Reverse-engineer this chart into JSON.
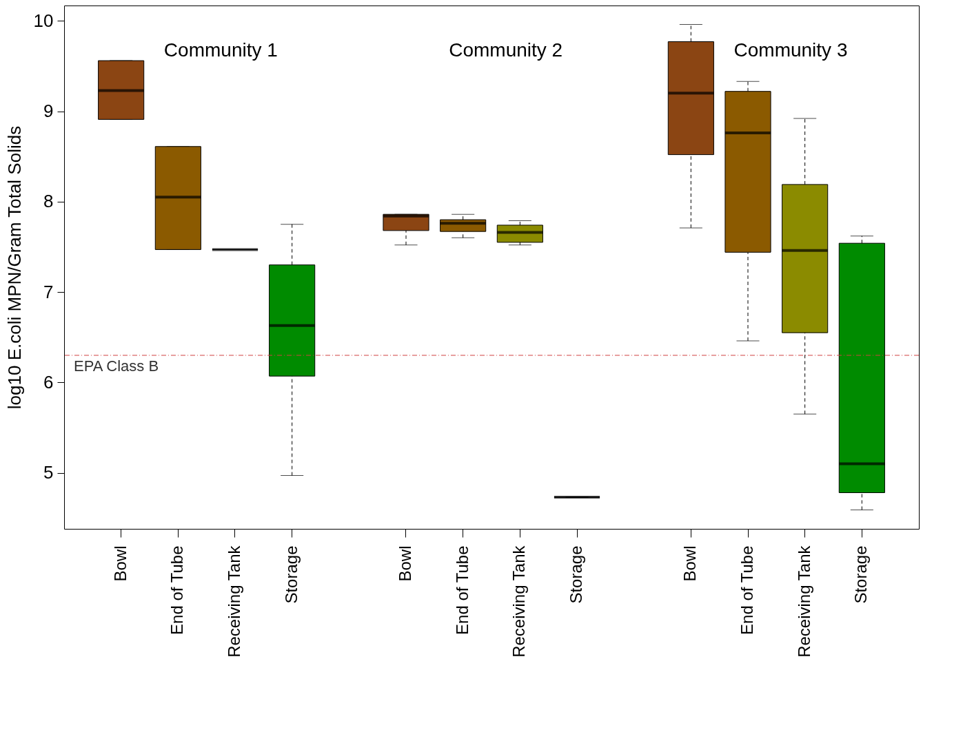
{
  "chart_data": {
    "type": "box",
    "ylabel": "log10 E.coli MPN/Gram Total Solids",
    "categories": [
      "Bowl",
      "End of Tube",
      "Receiving Tank",
      "Storage",
      null,
      "Bowl",
      "End of Tube",
      "Receiving Tank",
      "Storage",
      null,
      "Bowl",
      "End of Tube",
      "Receiving Tank",
      "Storage"
    ],
    "colors": [
      "#8b4513",
      "#8b5a00",
      null,
      "#008b00",
      null,
      "#8b4513",
      "#8b5a00",
      "#8b8b00",
      null,
      null,
      "#8b4513",
      "#8b5a00",
      "#8b8b00",
      "#008b00"
    ],
    "boxes": [
      {
        "low": 8.91,
        "q1": 8.91,
        "median": 9.23,
        "q3": 9.56,
        "high": 9.56
      },
      {
        "low": 7.47,
        "q1": 7.47,
        "median": 8.05,
        "q3": 8.61,
        "high": 8.61
      },
      {
        "low": 7.47,
        "q1": 7.47,
        "median": 7.47,
        "q3": 7.47,
        "high": 7.47
      },
      {
        "low": 4.97,
        "q1": 6.07,
        "median": 6.63,
        "q3": 7.3,
        "high": 7.75
      },
      null,
      {
        "low": 7.52,
        "q1": 7.68,
        "median": 7.84,
        "q3": 7.86,
        "high": 7.86
      },
      {
        "low": 7.6,
        "q1": 7.67,
        "median": 7.76,
        "q3": 7.8,
        "high": 7.86
      },
      {
        "low": 7.52,
        "q1": 7.55,
        "median": 7.66,
        "q3": 7.74,
        "high": 7.79
      },
      {
        "low": 4.73,
        "q1": 4.73,
        "median": 4.73,
        "q3": 4.73,
        "high": 4.73
      },
      null,
      {
        "low": 7.71,
        "q1": 8.52,
        "median": 9.2,
        "q3": 9.77,
        "high": 9.96
      },
      {
        "low": 6.46,
        "q1": 7.44,
        "median": 8.76,
        "q3": 9.22,
        "high": 9.33
      },
      {
        "low": 5.65,
        "q1": 6.55,
        "median": 7.46,
        "q3": 8.19,
        "high": 8.92
      },
      {
        "low": 4.59,
        "q1": 4.78,
        "median": 5.1,
        "q3": 7.54,
        "high": 7.62
      }
    ],
    "ylim": [
      4.38,
      10.17
    ],
    "yticks": [
      5,
      6,
      7,
      8,
      9,
      10
    ],
    "ref_lines": [
      {
        "axis": "y",
        "value": 6.3,
        "label": "EPA Class B",
        "color": "#d04040",
        "line_style": "dashdot"
      }
    ],
    "annotations": [
      "Community 1",
      "Community 2",
      "Community 3"
    ]
  }
}
